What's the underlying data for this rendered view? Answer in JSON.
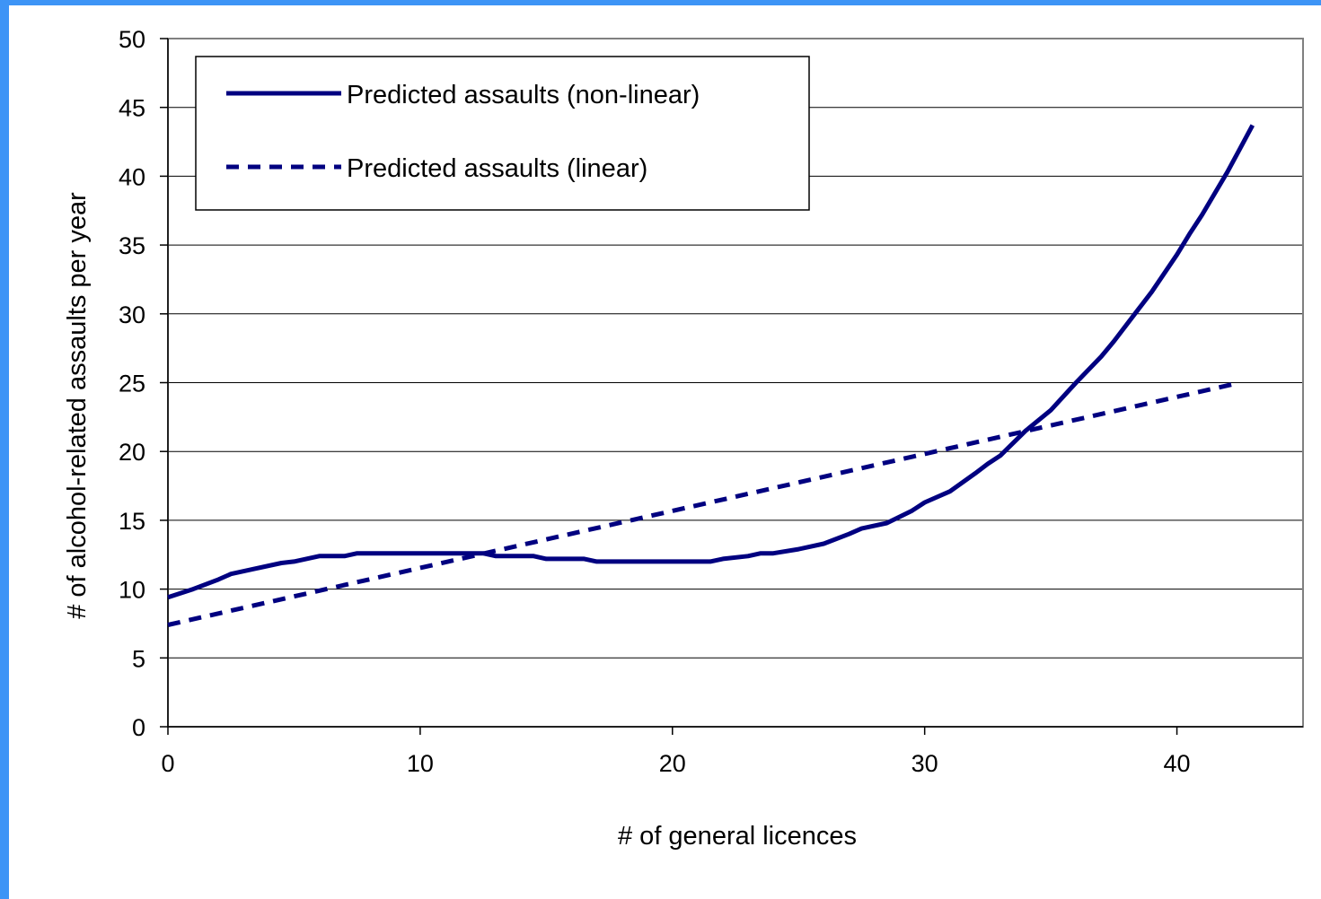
{
  "frame": {
    "color": "#3d94f6"
  },
  "chart_data": {
    "type": "line",
    "xlabel": "# of general licences",
    "ylabel": "# of alcohol-related assaults per year",
    "xlim": [
      0,
      45
    ],
    "ylim": [
      0,
      50
    ],
    "xticks": [
      0,
      10,
      20,
      30,
      40
    ],
    "yticks": [
      0,
      5,
      10,
      15,
      20,
      25,
      30,
      35,
      40,
      45,
      50
    ],
    "grid": "horizontal",
    "legend_position": "top-left",
    "series": [
      {
        "name": "Predicted assaults (non-linear)",
        "style": "solid",
        "color": "#000080",
        "x": [
          0,
          1,
          2,
          2.5,
          3.5,
          4.5,
          5,
          6,
          7,
          7.5,
          9,
          10,
          11,
          12,
          12.5,
          13,
          14.5,
          15,
          16.5,
          17,
          18,
          19,
          20,
          21,
          21.5,
          22,
          23,
          23.5,
          24,
          25,
          26,
          27,
          27.5,
          28.5,
          29.5,
          30,
          31,
          32,
          32.5,
          33,
          34,
          35,
          36,
          37,
          37.5,
          38.5,
          39,
          40,
          40.5,
          41,
          42,
          42.5,
          43
        ],
        "y": [
          9.4,
          10.0,
          10.7,
          11.1,
          11.5,
          11.9,
          12.0,
          12.4,
          12.4,
          12.6,
          12.6,
          12.6,
          12.6,
          12.6,
          12.6,
          12.4,
          12.4,
          12.2,
          12.2,
          12.0,
          12.0,
          12.0,
          12.0,
          12.0,
          12.0,
          12.2,
          12.4,
          12.6,
          12.6,
          12.9,
          13.3,
          14.0,
          14.4,
          14.8,
          15.7,
          16.3,
          17.1,
          18.4,
          19.1,
          19.7,
          21.5,
          23.0,
          25.0,
          26.9,
          28.0,
          30.4,
          31.6,
          34.3,
          35.8,
          37.2,
          40.3,
          42.0,
          43.7
        ]
      },
      {
        "name": "Predicted assaults (linear)",
        "style": "dashed",
        "color": "#000080",
        "x": [
          0,
          42.5
        ],
        "y": [
          7.4,
          25.0
        ]
      }
    ]
  }
}
